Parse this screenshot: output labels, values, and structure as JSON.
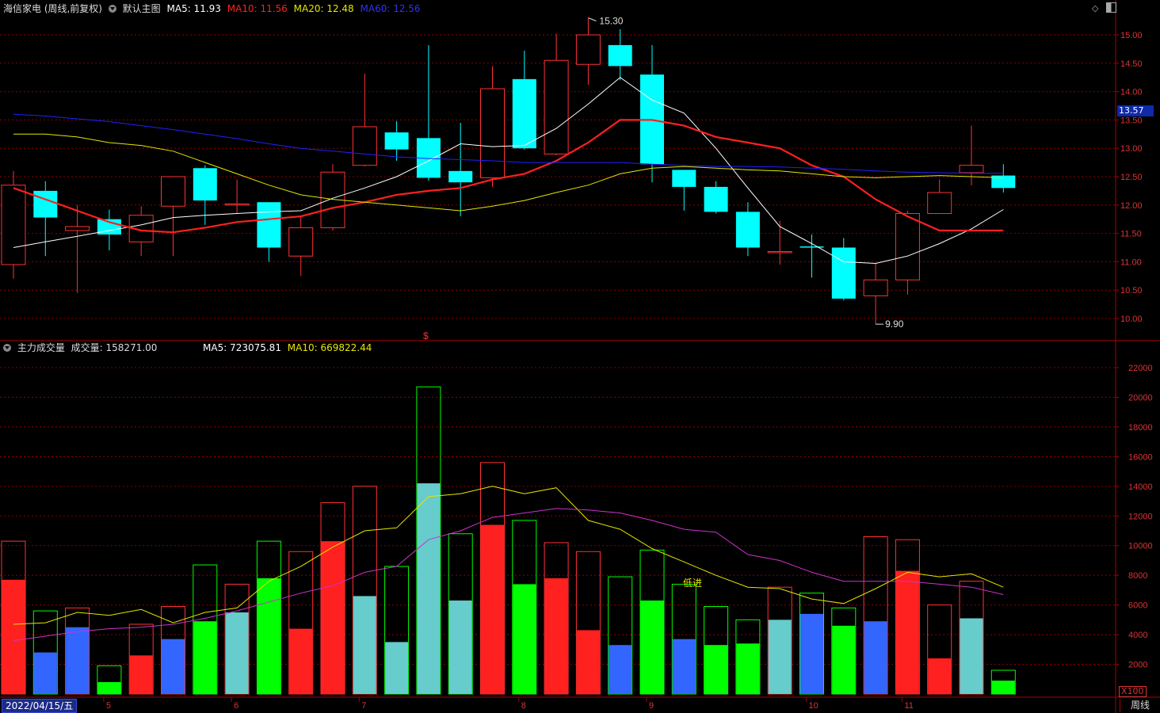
{
  "header": {
    "stock": "海信家电 (周线,前复权)",
    "main_chart": "默认主图",
    "ma5": "MA5: 11.93",
    "ma10": "MA10: 11.56",
    "ma20": "MA20: 12.48",
    "ma60": "MA60: 12.56"
  },
  "vol_header": {
    "title": "主力成交量",
    "volume": "成交量: 158271.00",
    "ma5": "MA5: 723075.81",
    "ma10": "MA10: 669822.44"
  },
  "current_price_label": "13.57",
  "high_label": "15.30",
  "low_label": "9.90",
  "annotation_label": "低进",
  "signal_icon_label": "$",
  "x100_label": "X100",
  "date_label": "2022/04/15/五",
  "period_label": "周线",
  "month_labels": [
    "5",
    "6",
    "7",
    "8",
    "9",
    "10",
    "11"
  ],
  "price_axis": [
    "15.00",
    "14.50",
    "14.00",
    "13.50",
    "13.00",
    "12.50",
    "12.00",
    "11.50",
    "11.00",
    "10.50",
    "10.00"
  ],
  "vol_axis": [
    "22000",
    "20000",
    "18000",
    "16000",
    "14000",
    "12000",
    "10000",
    "8000",
    "6000",
    "4000",
    "2000"
  ],
  "colors": {
    "up": "#ff3232",
    "down": "#00ffff",
    "ma5": "#ffffff",
    "ma10": "#ff2020",
    "ma20": "#e6e600",
    "ma60": "#2020ff",
    "grid": "#8a0000",
    "vol_red": "#ff2020",
    "vol_green": "#00ff00",
    "vol_cyan": "#66cccc",
    "vol_blue": "#3366ff",
    "vol_ma5": "#e6e600",
    "vol_ma10": "#cc33cc"
  },
  "chart_data": [
    {
      "type": "candlestick",
      "title": "海信家电 (周线,前复权)",
      "ylim": [
        9.8,
        15.4
      ],
      "candles": [
        {
          "o": 10.95,
          "c": 12.35,
          "h": 12.6,
          "l": 10.7,
          "dir": "up"
        },
        {
          "o": 12.25,
          "c": 11.78,
          "h": 12.42,
          "l": 11.1,
          "dir": "down"
        },
        {
          "o": 11.55,
          "c": 11.62,
          "h": 12.0,
          "l": 10.45,
          "dir": "up"
        },
        {
          "o": 11.75,
          "c": 11.48,
          "h": 11.92,
          "l": 11.2,
          "dir": "down"
        },
        {
          "o": 11.35,
          "c": 11.82,
          "h": 11.98,
          "l": 11.1,
          "dir": "up"
        },
        {
          "o": 11.98,
          "c": 12.5,
          "h": 12.5,
          "l": 11.1,
          "dir": "up"
        },
        {
          "o": 12.65,
          "c": 12.08,
          "h": 12.7,
          "l": 11.65,
          "dir": "down"
        },
        {
          "o": 12.0,
          "c": 12.02,
          "h": 12.45,
          "l": 11.85,
          "dir": "up"
        },
        {
          "o": 12.05,
          "c": 11.25,
          "h": 12.05,
          "l": 11.0,
          "dir": "down"
        },
        {
          "o": 11.1,
          "c": 11.6,
          "h": 11.8,
          "l": 10.75,
          "dir": "up"
        },
        {
          "o": 11.6,
          "c": 12.58,
          "h": 12.72,
          "l": 11.55,
          "dir": "up"
        },
        {
          "o": 12.7,
          "c": 13.38,
          "h": 14.32,
          "l": 12.68,
          "dir": "up"
        },
        {
          "o": 13.28,
          "c": 12.98,
          "h": 13.48,
          "l": 12.78,
          "dir": "down"
        },
        {
          "o": 13.18,
          "c": 12.48,
          "h": 14.82,
          "l": 12.43,
          "dir": "down"
        },
        {
          "o": 12.6,
          "c": 12.4,
          "h": 13.45,
          "l": 11.8,
          "dir": "down"
        },
        {
          "o": 12.48,
          "c": 14.05,
          "h": 14.45,
          "l": 12.32,
          "dir": "up"
        },
        {
          "o": 14.22,
          "c": 13.0,
          "h": 14.72,
          "l": 12.98,
          "dir": "down"
        },
        {
          "o": 12.9,
          "c": 14.55,
          "h": 15.02,
          "l": 12.88,
          "dir": "up"
        },
        {
          "o": 14.48,
          "c": 15.0,
          "h": 15.3,
          "l": 14.12,
          "dir": "up"
        },
        {
          "o": 14.82,
          "c": 14.45,
          "h": 15.1,
          "l": 14.2,
          "dir": "down"
        },
        {
          "o": 14.3,
          "c": 12.72,
          "h": 14.82,
          "l": 12.4,
          "dir": "down"
        },
        {
          "o": 12.62,
          "c": 12.32,
          "h": 12.62,
          "l": 11.9,
          "dir": "down"
        },
        {
          "o": 12.32,
          "c": 11.88,
          "h": 12.42,
          "l": 11.85,
          "dir": "down"
        },
        {
          "o": 11.88,
          "c": 11.25,
          "h": 12.05,
          "l": 11.1,
          "dir": "down"
        },
        {
          "o": 11.18,
          "c": 11.18,
          "h": 11.72,
          "l": 10.95,
          "dir": "up"
        },
        {
          "o": 11.25,
          "c": 11.27,
          "h": 11.48,
          "l": 10.72,
          "dir": "down"
        },
        {
          "o": 11.25,
          "c": 10.35,
          "h": 11.42,
          "l": 10.32,
          "dir": "down"
        },
        {
          "o": 10.4,
          "c": 10.68,
          "h": 10.98,
          "l": 9.9,
          "dir": "up"
        },
        {
          "o": 10.68,
          "c": 11.85,
          "h": 11.9,
          "l": 10.42,
          "dir": "up"
        },
        {
          "o": 11.85,
          "c": 12.22,
          "h": 12.45,
          "l": 11.85,
          "dir": "up"
        },
        {
          "o": 12.57,
          "c": 12.7,
          "h": 13.4,
          "l": 12.35,
          "dir": "up"
        },
        {
          "o": 12.52,
          "c": 12.3,
          "h": 12.72,
          "l": 12.22,
          "dir": "down"
        }
      ],
      "series": [
        {
          "name": "MA5",
          "values": [
            11.25,
            11.35,
            11.45,
            11.55,
            11.65,
            11.78,
            11.82,
            11.85,
            11.88,
            11.9,
            12.12,
            12.3,
            12.5,
            12.78,
            13.08,
            13.03,
            13.05,
            13.35,
            13.78,
            14.25,
            13.85,
            13.62,
            13.0,
            12.3,
            11.62,
            11.32,
            11.0,
            10.97,
            11.1,
            11.32,
            11.58,
            11.92
          ]
        },
        {
          "name": "MA10",
          "values": [
            12.3,
            12.1,
            11.9,
            11.7,
            11.55,
            11.52,
            11.6,
            11.7,
            11.75,
            11.8,
            11.95,
            12.05,
            12.18,
            12.25,
            12.3,
            12.45,
            12.55,
            12.78,
            13.1,
            13.5,
            13.5,
            13.4,
            13.2,
            13.1,
            13.0,
            12.7,
            12.5,
            12.1,
            11.8,
            11.55,
            11.55,
            11.55
          ]
        },
        {
          "name": "MA20",
          "values": [
            13.25,
            13.25,
            13.2,
            13.1,
            13.05,
            12.95,
            12.75,
            12.55,
            12.35,
            12.18,
            12.1,
            12.05,
            12.0,
            11.95,
            11.9,
            11.98,
            12.08,
            12.22,
            12.35,
            12.55,
            12.65,
            12.68,
            12.65,
            12.62,
            12.6,
            12.55,
            12.5,
            12.48,
            12.5,
            12.52,
            12.5,
            12.48
          ]
        },
        {
          "name": "MA60",
          "values": [
            13.6,
            13.57,
            13.52,
            13.47,
            13.4,
            13.33,
            13.25,
            13.17,
            13.08,
            13.0,
            12.95,
            12.9,
            12.85,
            12.82,
            12.8,
            12.78,
            12.75,
            12.75,
            12.75,
            12.75,
            12.72,
            12.7,
            12.68,
            12.68,
            12.67,
            12.65,
            12.63,
            12.6,
            12.58,
            12.57,
            12.56,
            12.56
          ]
        }
      ]
    },
    {
      "type": "bar",
      "title": "主力成交量",
      "ylim": [
        0,
        22500
      ],
      "bars": [
        {
          "total": 10300,
          "main": 7700,
          "color": "red"
        },
        {
          "total": 5600,
          "main": 2800,
          "color": "blue"
        },
        {
          "total": 5800,
          "main": 4500,
          "color": "blue"
        },
        {
          "total": 1900,
          "main": 800,
          "color": "green"
        },
        {
          "total": 4700,
          "main": 2600,
          "color": "red"
        },
        {
          "total": 5900,
          "main": 3700,
          "color": "blue"
        },
        {
          "total": 8700,
          "main": 4900,
          "color": "green"
        },
        {
          "total": 7400,
          "main": 5500,
          "color": "cyan"
        },
        {
          "total": 10300,
          "main": 7800,
          "color": "green"
        },
        {
          "total": 9600,
          "main": 4400,
          "color": "red"
        },
        {
          "total": 12900,
          "main": 10300,
          "color": "red"
        },
        {
          "total": 14000,
          "main": 6600,
          "color": "cyan"
        },
        {
          "total": 8600,
          "main": 3500,
          "color": "cyan"
        },
        {
          "total": 20700,
          "main": 14200,
          "color": "cyan"
        },
        {
          "total": 10800,
          "main": 6300,
          "color": "cyan"
        },
        {
          "total": 15600,
          "main": 11400,
          "color": "red"
        },
        {
          "total": 11700,
          "main": 7400,
          "color": "green"
        },
        {
          "total": 10200,
          "main": 7800,
          "color": "red"
        },
        {
          "total": 9600,
          "main": 4300,
          "color": "red"
        },
        {
          "total": 7900,
          "main": 3300,
          "color": "blue"
        },
        {
          "total": 9700,
          "main": 6300,
          "color": "green"
        },
        {
          "total": 7400,
          "main": 3700,
          "color": "blue"
        },
        {
          "total": 5900,
          "main": 3300,
          "color": "green"
        },
        {
          "total": 5000,
          "main": 3400,
          "color": "green"
        },
        {
          "total": 7200,
          "main": 5000,
          "color": "cyan"
        },
        {
          "total": 6800,
          "main": 5400,
          "color": "blue"
        },
        {
          "total": 5800,
          "main": 4600,
          "color": "green"
        },
        {
          "total": 10600,
          "main": 4900,
          "color": "blue"
        },
        {
          "total": 10400,
          "main": 8300,
          "color": "red"
        },
        {
          "total": 6000,
          "main": 2400,
          "color": "red"
        },
        {
          "total": 7600,
          "main": 5100,
          "color": "cyan"
        },
        {
          "total": 1600,
          "main": 900,
          "color": "green"
        }
      ],
      "series": [
        {
          "name": "MA5",
          "values": [
            4700,
            4800,
            5500,
            5300,
            5700,
            4800,
            5500,
            5800,
            7600,
            8600,
            9900,
            11000,
            11200,
            13300,
            13500,
            14000,
            13500,
            13900,
            11700,
            11100,
            9800,
            8900,
            8000,
            7200,
            7100,
            6400,
            6100,
            7100,
            8200,
            7900,
            8100,
            7200
          ]
        },
        {
          "name": "MA10",
          "values": [
            3600,
            3900,
            4200,
            4400,
            4500,
            4700,
            5100,
            5600,
            6200,
            6800,
            7300,
            8200,
            8600,
            10400,
            11000,
            11900,
            12200,
            12500,
            12400,
            12200,
            11700,
            11100,
            10900,
            9400,
            9000,
            8200,
            7600,
            7600,
            7600,
            7400,
            7200,
            6700
          ]
        }
      ]
    }
  ]
}
